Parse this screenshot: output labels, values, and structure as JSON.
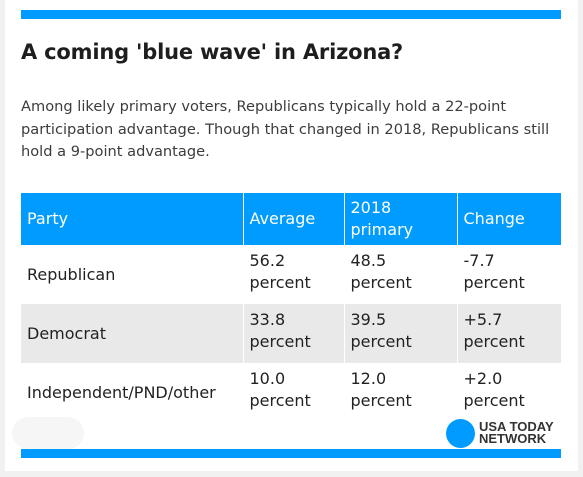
{
  "title": "A coming 'blue wave' in Arizona?",
  "intro": "Among likely primary voters, Republicans typically hold a 22-point participation advantage. Though that changed in 2018, Republicans still hold a 9-point advantage.",
  "chart_data": {
    "type": "table",
    "columns": [
      "Party",
      "Average",
      "2018 primary",
      "Change"
    ],
    "rows": [
      {
        "party": "Republican",
        "average": "56.2 percent",
        "primary_2018": "48.5 percent",
        "change": "-7.7 percent"
      },
      {
        "party": "Democrat",
        "average": "33.8 percent",
        "primary_2018": "39.5 percent",
        "change": "+5.7 percent"
      },
      {
        "party": "Independent/PND/other",
        "average": "10.0 percent",
        "primary_2018": "12.0 percent",
        "change": "+2.0 percent"
      }
    ],
    "values": {
      "average": [
        56.2,
        33.8,
        10.0
      ],
      "primary_2018": [
        48.5,
        39.5,
        12.0
      ],
      "change": [
        -7.7,
        5.7,
        2.0
      ]
    }
  },
  "logo": {
    "line1": "USA TODAY",
    "line2": "NETWORK"
  },
  "colors": {
    "accent": "#009bff",
    "row_alt": "#e9e9e9",
    "title": "#1e1e1e"
  }
}
